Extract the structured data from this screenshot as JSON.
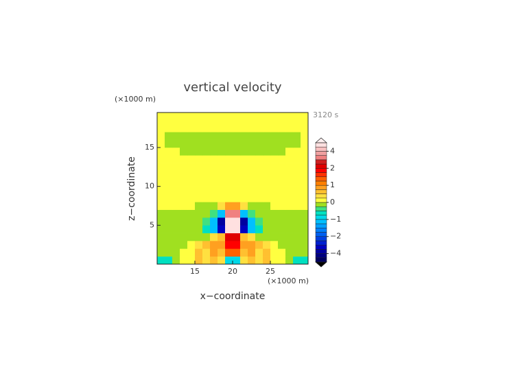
{
  "chart_data": {
    "type": "contour",
    "title": "vertical velocity",
    "time_label": "3120 s",
    "xlabel": "x−coordinate",
    "ylabel": "z−coordinate",
    "x_unit": "(×1000 m)",
    "y_unit": "(×1000 m)",
    "xlim": [
      10,
      30
    ],
    "ylim": [
      0,
      19.5
    ],
    "xticks": [
      15,
      20,
      25
    ],
    "yticks": [
      5,
      10,
      15
    ],
    "x": [
      10.5,
      11.5,
      12.5,
      13.5,
      14.5,
      15.5,
      16.5,
      17.5,
      18.5,
      19.5,
      20.5,
      21.5,
      22.5,
      23.5,
      24.5,
      25.5,
      26.5,
      27.5,
      28.5,
      29.5
    ],
    "y": [
      0.5,
      1.5,
      2.5,
      3.5,
      4.5,
      5.5,
      6.5,
      7.5,
      8.5,
      9.5,
      10.5,
      11.5,
      12.5,
      13.5,
      14.5,
      15.5,
      16.5,
      17.5,
      18.5,
      19.5
    ],
    "z": [
      [
        -0.6,
        -0.6,
        -0.1,
        0.1,
        0.1,
        0.6,
        0.3,
        0.6,
        0.3,
        -0.8,
        -0.8,
        0.3,
        0.6,
        0.3,
        0.6,
        0.1,
        0.1,
        -0.1,
        -0.6,
        -0.6
      ],
      [
        -0.1,
        -0.1,
        -0.1,
        0.1,
        0.1,
        0.6,
        0.4,
        0.8,
        0.6,
        1.5,
        1.5,
        0.6,
        0.8,
        0.4,
        0.6,
        0.1,
        0.1,
        -0.1,
        -0.1,
        -0.1
      ],
      [
        -0.1,
        -0.1,
        -0.1,
        -0.1,
        0.1,
        0.3,
        0.6,
        0.8,
        0.9,
        1.8,
        1.8,
        0.9,
        0.8,
        0.6,
        0.3,
        0.1,
        -0.1,
        -0.1,
        -0.1,
        -0.1
      ],
      [
        -0.1,
        -0.1,
        -0.1,
        -0.1,
        -0.1,
        -0.1,
        -0.1,
        0.3,
        0.6,
        2.5,
        2.5,
        0.6,
        0.3,
        -0.1,
        -0.1,
        -0.1,
        -0.1,
        -0.1,
        -0.1,
        -0.1
      ],
      [
        -0.1,
        -0.1,
        -0.1,
        -0.1,
        -0.1,
        -0.1,
        -0.5,
        -1.2,
        -3.0,
        4.6,
        4.6,
        -3.0,
        -1.2,
        -0.5,
        -0.1,
        -0.1,
        -0.1,
        -0.1,
        -0.1,
        -0.1
      ],
      [
        -0.1,
        -0.1,
        -0.1,
        -0.1,
        -0.1,
        -0.1,
        -0.4,
        -1.2,
        -3.5,
        4.8,
        4.8,
        -3.5,
        -1.2,
        -0.4,
        -0.1,
        -0.1,
        -0.1,
        -0.1,
        -0.1,
        -0.1
      ],
      [
        -0.1,
        -0.1,
        -0.1,
        -0.1,
        -0.1,
        -0.1,
        -0.1,
        -0.3,
        -1.0,
        3.5,
        3.5,
        -1.0,
        -0.3,
        -0.1,
        -0.1,
        -0.1,
        -0.1,
        -0.1,
        -0.1,
        -0.1
      ],
      [
        0.1,
        0.1,
        0.1,
        0.1,
        0.1,
        -0.1,
        -0.1,
        -0.1,
        0.3,
        0.8,
        0.8,
        0.3,
        -0.1,
        -0.1,
        -0.1,
        0.1,
        0.1,
        0.1,
        0.1,
        0.1
      ],
      [
        0.1,
        0.1,
        0.1,
        0.1,
        0.1,
        0.1,
        0.1,
        0.1,
        0.1,
        0.1,
        0.1,
        0.1,
        0.1,
        0.1,
        0.1,
        0.1,
        0.1,
        0.1,
        0.1,
        0.1
      ],
      [
        0.1,
        0.1,
        0.1,
        0.1,
        0.1,
        0.1,
        0.1,
        0.1,
        0.1,
        0.1,
        0.1,
        0.1,
        0.1,
        0.1,
        0.1,
        0.1,
        0.1,
        0.1,
        0.1,
        0.1
      ],
      [
        0.1,
        0.1,
        0.1,
        0.1,
        0.1,
        0.1,
        0.1,
        0.1,
        0.1,
        0.1,
        0.1,
        0.1,
        0.1,
        0.1,
        0.1,
        0.1,
        0.1,
        0.1,
        0.1,
        0.1
      ],
      [
        0.1,
        0.1,
        0.1,
        0.1,
        0.1,
        0.1,
        0.1,
        0.1,
        0.1,
        0.1,
        0.1,
        0.1,
        0.1,
        0.1,
        0.1,
        0.1,
        0.1,
        0.1,
        0.1,
        0.1
      ],
      [
        0.1,
        0.1,
        0.1,
        0.1,
        0.1,
        0.1,
        0.1,
        0.1,
        0.1,
        0.1,
        0.1,
        0.1,
        0.1,
        0.1,
        0.1,
        0.1,
        0.1,
        0.1,
        0.1,
        0.1
      ],
      [
        0.1,
        0.1,
        0.1,
        0.1,
        0.1,
        0.1,
        0.1,
        0.1,
        0.1,
        0.1,
        0.1,
        0.1,
        0.1,
        0.1,
        0.1,
        0.1,
        0.1,
        0.1,
        0.1,
        0.1
      ],
      [
        0.1,
        0.1,
        0.1,
        -0.1,
        -0.1,
        -0.1,
        -0.1,
        -0.1,
        -0.1,
        -0.1,
        -0.1,
        -0.1,
        -0.1,
        -0.1,
        -0.1,
        -0.1,
        -0.1,
        0.1,
        0.1,
        0.1
      ],
      [
        0.1,
        -0.1,
        -0.1,
        -0.1,
        -0.1,
        -0.1,
        -0.1,
        -0.1,
        -0.1,
        -0.1,
        -0.1,
        -0.1,
        -0.1,
        -0.1,
        -0.1,
        -0.1,
        -0.1,
        -0.1,
        -0.1,
        0.1
      ],
      [
        0.1,
        -0.1,
        -0.1,
        -0.1,
        -0.1,
        -0.1,
        -0.1,
        -0.1,
        -0.1,
        -0.1,
        -0.1,
        -0.1,
        -0.1,
        -0.1,
        -0.1,
        -0.1,
        -0.1,
        -0.1,
        -0.1,
        0.1
      ],
      [
        0.1,
        0.1,
        0.1,
        0.1,
        0.1,
        0.1,
        0.1,
        0.1,
        0.1,
        0.1,
        0.1,
        0.1,
        0.1,
        0.1,
        0.1,
        0.1,
        0.1,
        0.1,
        0.1,
        0.1
      ],
      [
        0.1,
        0.1,
        0.1,
        0.1,
        0.1,
        0.1,
        0.1,
        0.1,
        0.1,
        0.1,
        0.1,
        0.1,
        0.1,
        0.1,
        0.1,
        0.1,
        0.1,
        0.1,
        0.1,
        0.1
      ],
      [
        0.1,
        0.1,
        0.1,
        0.1,
        0.1,
        0.1,
        0.1,
        0.1,
        0.1,
        0.1,
        0.1,
        0.1,
        0.1,
        0.1,
        0.1,
        0.1,
        0.1,
        0.1,
        0.1,
        0.1
      ]
    ],
    "colorbar": {
      "levels": [
        -5,
        -4.5,
        -4,
        -3.5,
        -3,
        -2.5,
        -2,
        -1.75,
        -1.5,
        -1.25,
        -1,
        -0.75,
        -0.5,
        -0.25,
        0,
        0.25,
        0.5,
        0.75,
        1,
        1.25,
        1.5,
        1.75,
        2,
        2.5,
        3,
        3.5,
        4,
        4.5,
        5
      ],
      "colors": [
        "#000060",
        "#000080",
        "#0000a0",
        "#0000c0",
        "#0020d0",
        "#0040e0",
        "#0060f0",
        "#0080ff",
        "#00a0ff",
        "#00c0ff",
        "#00d8e8",
        "#00e0c0",
        "#40e080",
        "#a0e020",
        "#ffff40",
        "#ffe040",
        "#ffc030",
        "#ffa020",
        "#ff8000",
        "#ff6000",
        "#ff3000",
        "#ff0000",
        "#e00000",
        "#d02020",
        "#f08080",
        "#f0a0a0",
        "#f8c0c0",
        "#ffe0e0"
      ],
      "under_color": "#000000",
      "over_color": "#fff0f0",
      "ticks": [
        4,
        2,
        1,
        0,
        {
          "value": -1,
          "label": "−1"
        },
        {
          "value": -2,
          "label": "−2"
        },
        {
          "value": -4,
          "label": "−4"
        }
      ]
    }
  }
}
